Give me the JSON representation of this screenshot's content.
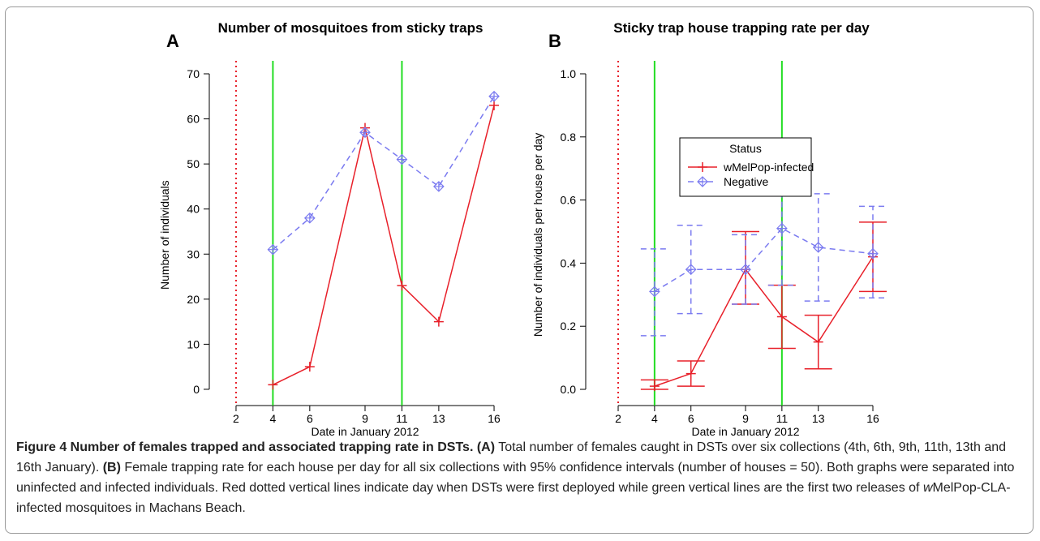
{
  "chart_data": [
    {
      "type": "line",
      "panel": "A",
      "title": "Number of mosquitoes from sticky traps",
      "xlabel": "Date in January 2012",
      "ylabel": "Number of individuals",
      "x": [
        4,
        6,
        9,
        11,
        13,
        16
      ],
      "xlim": [
        1.5,
        16.5
      ],
      "xticks": [
        2,
        4,
        6,
        9,
        11,
        13,
        16
      ],
      "ylim": [
        -1.5,
        70
      ],
      "yticks": [
        0,
        10,
        20,
        30,
        40,
        50,
        60,
        70
      ],
      "vlines": [
        {
          "x": 2,
          "color": "#e8202a",
          "style": "dotted"
        },
        {
          "x": 4,
          "color": "#22dd22",
          "style": "solid"
        },
        {
          "x": 11,
          "color": "#22dd22",
          "style": "solid"
        }
      ],
      "series": [
        {
          "name": "wMelPop-infected",
          "color": "#e8202a",
          "style": "solid",
          "marker": "plus",
          "values": [
            1,
            5,
            58,
            23,
            15,
            63
          ]
        },
        {
          "name": "Negative",
          "color": "#7b7bf0",
          "style": "dashed",
          "marker": "diamond",
          "values": [
            31,
            38,
            57,
            51,
            45,
            65
          ]
        }
      ]
    },
    {
      "type": "line",
      "panel": "B",
      "title": "Sticky trap house trapping rate per day",
      "xlabel": "Date in January 2012",
      "ylabel": "Number of individuals per house per day",
      "x": [
        4,
        6,
        9,
        11,
        13,
        16
      ],
      "xlim": [
        1.5,
        16.5
      ],
      "xticks": [
        2,
        4,
        6,
        9,
        11,
        13,
        16
      ],
      "ylim": [
        -0.02,
        1.0
      ],
      "yticks": [
        {
          "value": 0,
          "label": "0.0"
        },
        {
          "value": 0.2,
          "label": "0.2"
        },
        {
          "value": 0.4,
          "label": "0.4"
        },
        {
          "value": 0.6,
          "label": "0.6"
        },
        {
          "value": 0.8,
          "label": "0.8"
        },
        {
          "value": 1,
          "label": "1.0"
        }
      ],
      "vlines": [
        {
          "x": 2,
          "color": "#e8202a",
          "style": "dotted"
        },
        {
          "x": 4,
          "color": "#22dd22",
          "style": "solid"
        },
        {
          "x": 11,
          "color": "#22dd22",
          "style": "solid"
        }
      ],
      "legend_title": "Status",
      "legend": "top",
      "series": [
        {
          "name": "wMelPop-infected",
          "color": "#e8202a",
          "style": "solid",
          "marker": "plus",
          "values": [
            0.01,
            0.05,
            0.38,
            0.23,
            0.15,
            0.42
          ],
          "lower": [
            0,
            0.01,
            0.27,
            0.13,
            0.065,
            0.31
          ],
          "upper": [
            0.03,
            0.09,
            0.5,
            0.33,
            0.235,
            0.53
          ]
        },
        {
          "name": "Negative",
          "color": "#7b7bf0",
          "style": "dashed",
          "marker": "diamond",
          "values": [
            0.31,
            0.38,
            0.38,
            0.51,
            0.45,
            0.43
          ],
          "lower": [
            0.17,
            0.24,
            0.27,
            0.33,
            0.28,
            0.29
          ],
          "upper": [
            0.445,
            0.52,
            0.49,
            0.69,
            0.62,
            0.58
          ]
        }
      ]
    }
  ],
  "caption": [
    {
      "text": "Figure 4 Number of females trapped and associated trapping rate in DSTs.",
      "style": "b"
    },
    {
      "text": " (A)",
      "style": "b"
    },
    {
      "text": " Total number of females caught in DSTs over six collections (4th, 6th, 9th, 11th, 13th and 16th January).",
      "style": "n"
    },
    {
      "text": " (B)",
      "style": "b"
    },
    {
      "text": " Female trapping rate for each house per day for all six collections with 95% confidence intervals (number of houses = 50). Both graphs were separated into uninfected and infected individuals. Red dotted vertical lines indicate day when DSTs were first deployed while green vertical lines are the first two releases of ",
      "style": "n"
    },
    {
      "text": "w",
      "style": "i"
    },
    {
      "text": "MelPop-CLA-infected mosquitoes in Machans Beach.",
      "style": "n"
    }
  ]
}
